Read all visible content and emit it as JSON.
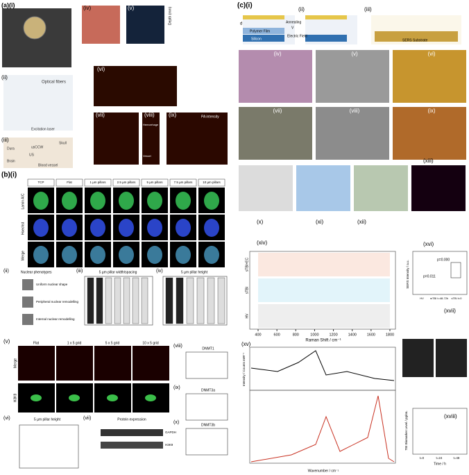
{
  "a": {
    "label": "(a)(i)",
    "sub": [
      "(ii)",
      "(iii)",
      "(iv)",
      "(v)",
      "(vi)",
      "(vii)",
      "(viii)",
      "(ix)"
    ],
    "texts": [
      "Optical fibers",
      "Excitation laser",
      "usCCW",
      "Skull",
      "Dura",
      "Brain",
      "Blood vessel",
      "US",
      "PA intensity",
      "Hemorrhage",
      "Vessel",
      "Depth (mm)"
    ]
  },
  "b": {
    "label": "(b)(i)",
    "columns": [
      "TCP",
      "Flat",
      "1 µm pillars",
      "2.5 µm pillars",
      "5 µm pillars",
      "7.5 µm pillars",
      "10 µm pillars"
    ],
    "rows": [
      "Lamin A/C",
      "Hoechst",
      "Merge"
    ],
    "sub": [
      "(ii)",
      "(iii)",
      "(iv)",
      "(v)",
      "(vi)",
      "(vii)",
      "(viii)",
      "(ix)",
      "(x)"
    ],
    "phenotypes_title": "Nuclear phenotypes",
    "phenotypes": [
      "Uniform nuclear shape",
      "Peripheral nuclear remodelling",
      "Internal nuclear remodelling"
    ],
    "iii_title": "5 µm pillar width/spacing",
    "iv_title": "5 µm pillar height",
    "v_columns": [
      "Flat",
      "1 x 5 grid",
      "5 x 5 grid",
      "10 x 5 grid"
    ],
    "v_rows": [
      "Merge",
      "H3K9"
    ],
    "viii_title": "DNMT1",
    "ix_title": "DNMT3a",
    "x_title": "DNMT3b",
    "vi_title": "5 µm pillar height",
    "vii_title": "Protein expression",
    "vii_bands": [
      "GAPDH",
      "H3K9"
    ]
  },
  "c": {
    "label": "(c)(i)",
    "sub": [
      "(ii)",
      "(iii)",
      "(iv)",
      "(v)",
      "(vi)",
      "(vii)",
      "(viii)",
      "(ix)",
      "(x)",
      "(xi)",
      "(xii)",
      "(xiii)",
      "(xiv)",
      "(xv)",
      "(xvi)",
      "(xvii)",
      "(xviii)"
    ],
    "texts": [
      "Polymer Film",
      "Silicon",
      "Annealing",
      "Electric Field",
      "SERS Substrate",
      "d",
      "V"
    ],
    "xiv": {
      "series": [
        "sTBI+EC",
        "sTBI",
        "HV"
      ],
      "xlabel": "Raman Shift / cm⁻¹",
      "xticks": [
        400,
        600,
        800,
        1000,
        1200,
        1400,
        1600,
        1800
      ]
    },
    "xvi": {
      "ylabel": "SERS Intensity / a.u.",
      "p_values": [
        "p=0.000",
        "p=0.011"
      ],
      "groups": [
        "HV",
        "mTBI t=48-72h",
        "sTBI t=0"
      ]
    },
    "xv": {
      "ylabel": "Intensity / Counts mW⁻¹",
      "xlabel": "Wavenumber / cm⁻¹"
    },
    "xviii": {
      "ylabel": "TBI Biomarker Level / pg/mL",
      "xlabel": "Time / h",
      "groups": [
        "t=0",
        "t=24",
        "t=48"
      ]
    }
  }
}
